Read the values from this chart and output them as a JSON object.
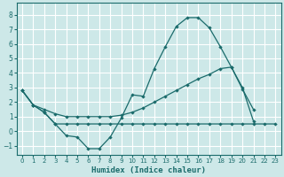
{
  "xlabel": "Humidex (Indice chaleur)",
  "bg_color": "#cde8e8",
  "grid_color": "#ffffff",
  "line_color": "#1a6b6b",
  "xlim": [
    -0.5,
    23.5
  ],
  "ylim": [
    -1.6,
    8.8
  ],
  "xticks": [
    0,
    1,
    2,
    3,
    4,
    5,
    6,
    7,
    8,
    9,
    10,
    11,
    12,
    13,
    14,
    15,
    16,
    17,
    18,
    19,
    20,
    21,
    22,
    23
  ],
  "yticks": [
    -1,
    0,
    1,
    2,
    3,
    4,
    5,
    6,
    7,
    8
  ],
  "curve_x": [
    0,
    1,
    2,
    3,
    4,
    5,
    6,
    7,
    8,
    9,
    10,
    11,
    12,
    13,
    14,
    15,
    16,
    17,
    18,
    19,
    20,
    21
  ],
  "curve_y": [
    2.8,
    1.8,
    1.3,
    0.5,
    -0.3,
    -0.4,
    -1.2,
    -1.2,
    -0.4,
    0.9,
    2.5,
    2.4,
    4.3,
    5.8,
    7.2,
    7.8,
    7.8,
    7.1,
    5.8,
    4.4,
    2.9,
    1.5
  ],
  "diag_x": [
    0,
    1,
    2,
    3,
    4,
    5,
    6,
    7,
    8,
    9,
    10,
    11,
    12,
    13,
    14,
    15,
    16,
    17,
    18,
    19,
    20,
    21
  ],
  "diag_y": [
    2.8,
    1.8,
    1.5,
    1.2,
    1.0,
    1.0,
    1.0,
    1.0,
    1.0,
    1.1,
    1.3,
    1.6,
    2.0,
    2.4,
    2.8,
    3.2,
    3.6,
    3.9,
    4.3,
    4.4,
    3.0,
    0.7
  ],
  "flat_x": [
    0,
    1,
    2,
    3,
    4,
    5,
    6,
    7,
    8,
    9,
    10,
    11,
    12,
    13,
    14,
    15,
    16,
    17,
    18,
    19,
    20,
    21,
    22,
    23
  ],
  "flat_y": [
    2.8,
    1.8,
    1.3,
    0.5,
    0.5,
    0.5,
    0.5,
    0.5,
    0.5,
    0.5,
    0.5,
    0.5,
    0.5,
    0.5,
    0.5,
    0.5,
    0.5,
    0.5,
    0.5,
    0.5,
    0.5,
    0.5,
    0.5,
    0.5
  ]
}
